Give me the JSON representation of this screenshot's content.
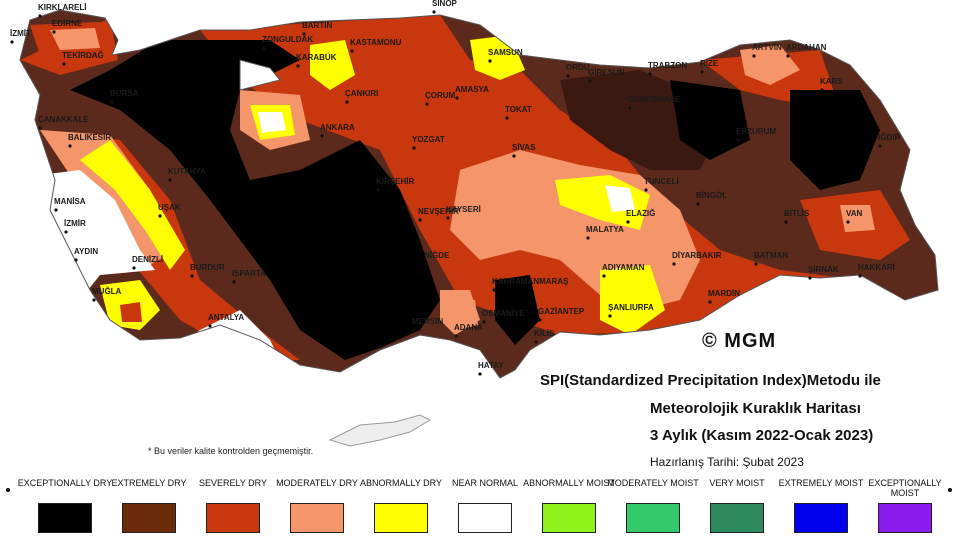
{
  "map": {
    "cities": [
      {
        "name": "KIRKLARELİ"
      },
      {
        "name": "EDİRNE"
      },
      {
        "name": "TEKİRDAĞ"
      },
      {
        "name": "ÇANAKKALE"
      },
      {
        "name": "BALIKESİR"
      },
      {
        "name": "MANİSA"
      },
      {
        "name": "İZMİR"
      },
      {
        "name": "AYDIN"
      },
      {
        "name": "MUĞLA"
      },
      {
        "name": "DENİZLİ"
      },
      {
        "name": "UŞAK"
      },
      {
        "name": "KÜTAHYA"
      },
      {
        "name": "BURDUR"
      },
      {
        "name": "ISPARTA"
      },
      {
        "name": "ANTALYA"
      },
      {
        "name": "BARTIN"
      },
      {
        "name": "ZONGULDAK"
      },
      {
        "name": "KARABÜK"
      },
      {
        "name": "KASTAMONU"
      },
      {
        "name": "SİNOP"
      },
      {
        "name": "SAMSUN"
      },
      {
        "name": "ÇANKIRI"
      },
      {
        "name": "ÇORUM"
      },
      {
        "name": "AMASYA"
      },
      {
        "name": "TOKAT"
      },
      {
        "name": "ORDU"
      },
      {
        "name": "GİRESUN"
      },
      {
        "name": "TRABZON"
      },
      {
        "name": "RİZE"
      },
      {
        "name": "ARTVİN"
      },
      {
        "name": "ARDAHAN"
      },
      {
        "name": "KARS"
      },
      {
        "name": "IĞDIR"
      },
      {
        "name": "GÜMÜŞHANE"
      },
      {
        "name": "ERZURUM"
      },
      {
        "name": "ANKARA"
      },
      {
        "name": "YOZGAT"
      },
      {
        "name": "SİVAS"
      },
      {
        "name": "KIRŞEHİR"
      },
      {
        "name": "KAYSERİ"
      },
      {
        "name": "NEVŞEHİR"
      },
      {
        "name": "NİĞDE"
      },
      {
        "name": "TUNCELİ"
      },
      {
        "name": "BİNGÖL"
      },
      {
        "name": "ELAZIĞ"
      },
      {
        "name": "MALATYA"
      },
      {
        "name": "BİTLİS"
      },
      {
        "name": "VAN"
      },
      {
        "name": "HAKKARİ"
      },
      {
        "name": "ŞIRNAK"
      },
      {
        "name": "BATMAN"
      },
      {
        "name": "DİYARBAKIR"
      },
      {
        "name": "MARDİN"
      },
      {
        "name": "ADIYAMAN"
      },
      {
        "name": "ŞANLIURFA"
      },
      {
        "name": "KAHRAMANMARAŞ"
      },
      {
        "name": "GAZİANTEP"
      },
      {
        "name": "KİLİS"
      },
      {
        "name": "OSMANİYE"
      },
      {
        "name": "ADANA"
      },
      {
        "name": "MERSİN"
      },
      {
        "name": "HATAY"
      },
      {
        "name": "İZMİT"
      },
      {
        "name": "BURSA"
      }
    ]
  },
  "copyright": "© MGM",
  "title": {
    "line1": "SPI(Standardized Precipitation Index)Metodu ile",
    "line2": "Meteorolojik Kuraklık Haritası",
    "line3": "3 Aylık (Kasım 2022-Ocak 2023)",
    "prepared": "Hazırlanış Tarihi: Şubat 2023"
  },
  "note": "* Bu veriler kalite kontrolden geçmemiştir.",
  "legend": [
    {
      "label": "EXCEPTIONALLY DRY",
      "color": "#000000"
    },
    {
      "label": "EXTREMELY DRY",
      "color": "#6b2a0a"
    },
    {
      "label": "SEVERELY DRY",
      "color": "#c9370e"
    },
    {
      "label": "MODERATELY DRY",
      "color": "#f5956a"
    },
    {
      "label": "ABNORMALLY DRY",
      "color": "#ffff00"
    },
    {
      "label": "NEAR NORMAL",
      "color": "#ffffff"
    },
    {
      "label": "ABNORMALLY MOIST",
      "color": "#8ef21a"
    },
    {
      "label": "MODERATELY MOIST",
      "color": "#34c96a"
    },
    {
      "label": "VERY MOIST",
      "color": "#2e8a5c"
    },
    {
      "label": "EXTREMELY MOIST",
      "color": "#0000ee"
    },
    {
      "label": "EXCEPTIONALLY MOIST",
      "color": "#8a1cf0"
    }
  ]
}
